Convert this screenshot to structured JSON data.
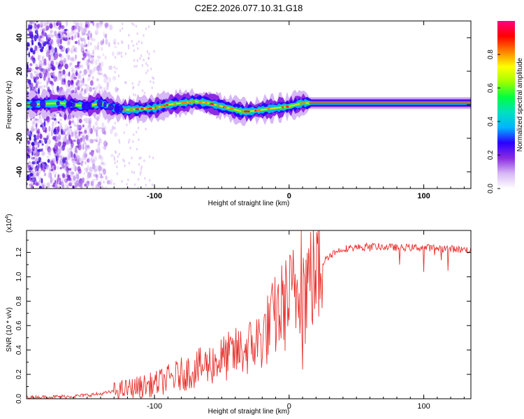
{
  "title": "C2E2.2026.077.10.31.G18",
  "chart_data": [
    {
      "type": "heatmap",
      "title": "C2E2.2026.077.10.31.G18",
      "xlabel": "Height of straight line (km)",
      "ylabel": "Frequency (Hz)",
      "xlim": [
        -195,
        135
      ],
      "ylim": [
        -50,
        50
      ],
      "xticks": [
        -100,
        0,
        100
      ],
      "yticks": [
        -40,
        -20,
        0,
        20,
        40
      ],
      "colorbar": {
        "label": "Normalized spectral amplitude",
        "range": [
          0,
          1
        ],
        "ticks": [
          "0.0",
          "0.2",
          "0.4",
          "0.6",
          "0.8"
        ],
        "tick_values": [
          0,
          0.2,
          0.4,
          0.6,
          0.8
        ],
        "colors": [
          "#ffffff",
          "#d7b7f5",
          "#8a2be2",
          "#2a00ff",
          "#00b4ff",
          "#00e0c0",
          "#00ff40",
          "#a0ff00",
          "#ffff00",
          "#ff8000",
          "#ff0000",
          "#ff0080"
        ]
      },
      "ridge": {
        "x": [
          -195,
          -170,
          -150,
          -140,
          -130,
          -120,
          -100,
          -90,
          -80,
          -70,
          -60,
          -50,
          -40,
          -35,
          -30,
          -20,
          -10,
          0,
          5,
          10,
          20,
          40,
          60,
          80,
          100,
          120,
          135
        ],
        "freq": [
          0,
          1,
          -1,
          1,
          -2,
          -3,
          -2,
          0,
          1,
          2,
          1,
          -1,
          -3,
          -4,
          -4,
          -3,
          -2,
          -1,
          0,
          1,
          1,
          1,
          1,
          1,
          1,
          1,
          1
        ]
      },
      "noise_region_x": [
        -195,
        -125
      ]
    },
    {
      "type": "line",
      "xlabel": "Height of straight line (km)",
      "ylabel": "SNR (10 * v/v)",
      "multiplier": "(x10",
      "exponent": "4",
      "xlim": [
        -195,
        135
      ],
      "ylim": [
        0,
        1.38
      ],
      "xticks": [
        -100,
        0,
        100
      ],
      "yticks": [
        0,
        0.2,
        0.4,
        0.6,
        0.8,
        1.0,
        1.2
      ],
      "ytick_labels": [
        "0.0",
        "0.2",
        "0.4",
        "0.6",
        "0.8",
        "1.0",
        "1.2"
      ],
      "color": "#e8322e",
      "trend": {
        "x": [
          -195,
          -160,
          -140,
          -120,
          -100,
          -80,
          -60,
          -40,
          -30,
          -20,
          -10,
          0,
          10,
          20,
          30,
          40,
          60,
          80,
          100,
          120,
          135
        ],
        "y": [
          0.01,
          0.02,
          0.04,
          0.08,
          0.12,
          0.2,
          0.28,
          0.37,
          0.42,
          0.5,
          0.68,
          0.82,
          0.93,
          1.05,
          1.18,
          1.23,
          1.25,
          1.24,
          1.24,
          1.23,
          1.22
        ]
      },
      "dips": [
        {
          "x": 10,
          "y": 0.24
        },
        {
          "x": 12,
          "y": 0.45
        },
        {
          "x": 100,
          "y": 1.04
        },
        {
          "x": 118,
          "y": 1.05
        },
        {
          "x": 82,
          "y": 1.1
        }
      ],
      "peak": {
        "x": 9,
        "y": 1.38
      }
    }
  ]
}
